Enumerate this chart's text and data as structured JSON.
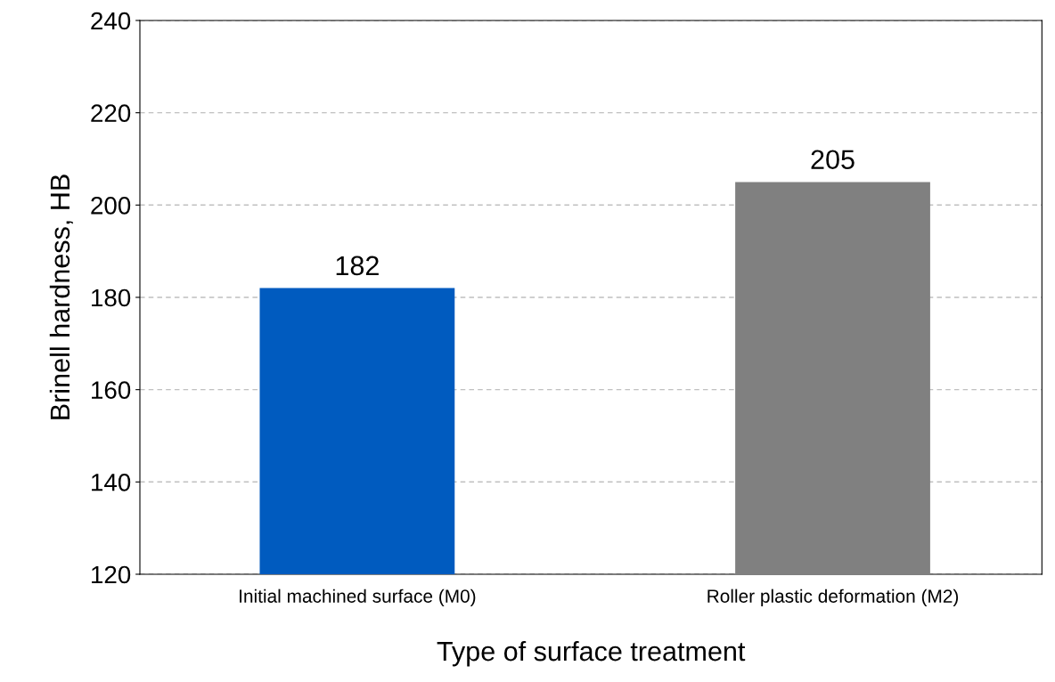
{
  "chart_data": {
    "type": "bar",
    "xlabel": "Type of surface treatment",
    "ylabel": "Brinell hardness, HB",
    "categories": [
      "Initial machined surface (M0)",
      "Roller plastic deformation (M2)"
    ],
    "values": [
      182,
      205
    ],
    "colors": [
      "#005bbf",
      "#808080"
    ],
    "ylim": [
      120,
      240
    ],
    "yticks": [
      120,
      140,
      160,
      180,
      200,
      220,
      240
    ],
    "grid": "y",
    "data_labels": true
  }
}
